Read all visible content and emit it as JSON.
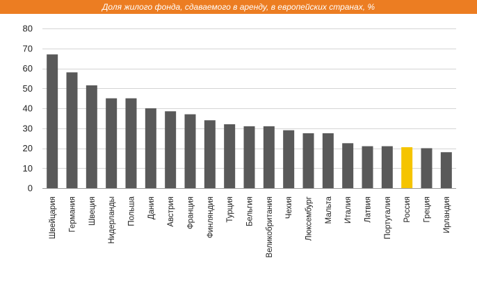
{
  "chart_data": {
    "type": "bar",
    "title": "Доля жилого фонда, сдаваемого в аренду, в европейских странах, %",
    "categories": [
      "Швейцария",
      "Германия",
      "Швеция",
      "Нидерланды",
      "Польша",
      "Дания",
      "Австрия",
      "Франция",
      "Финляндия",
      "Турция",
      "Бельгия",
      "Великобритания",
      "Чехия",
      "Люксембург",
      "Мальта",
      "Италия",
      "Латвия",
      "Португалия",
      "Россия",
      "Греция",
      "Ирландия"
    ],
    "values": [
      67,
      58,
      51.5,
      45,
      45,
      40,
      38.5,
      37,
      34,
      32,
      31,
      31,
      29,
      27.5,
      27.5,
      22.5,
      21,
      21,
      20.5,
      20,
      18
    ],
    "ylim": [
      0,
      80
    ],
    "yticks": [
      0,
      10,
      20,
      30,
      40,
      50,
      60,
      70,
      80
    ],
    "grid": true,
    "bar_color": "#595959",
    "highlight": {
      "category": "Россия",
      "color": "#f5c400"
    }
  }
}
